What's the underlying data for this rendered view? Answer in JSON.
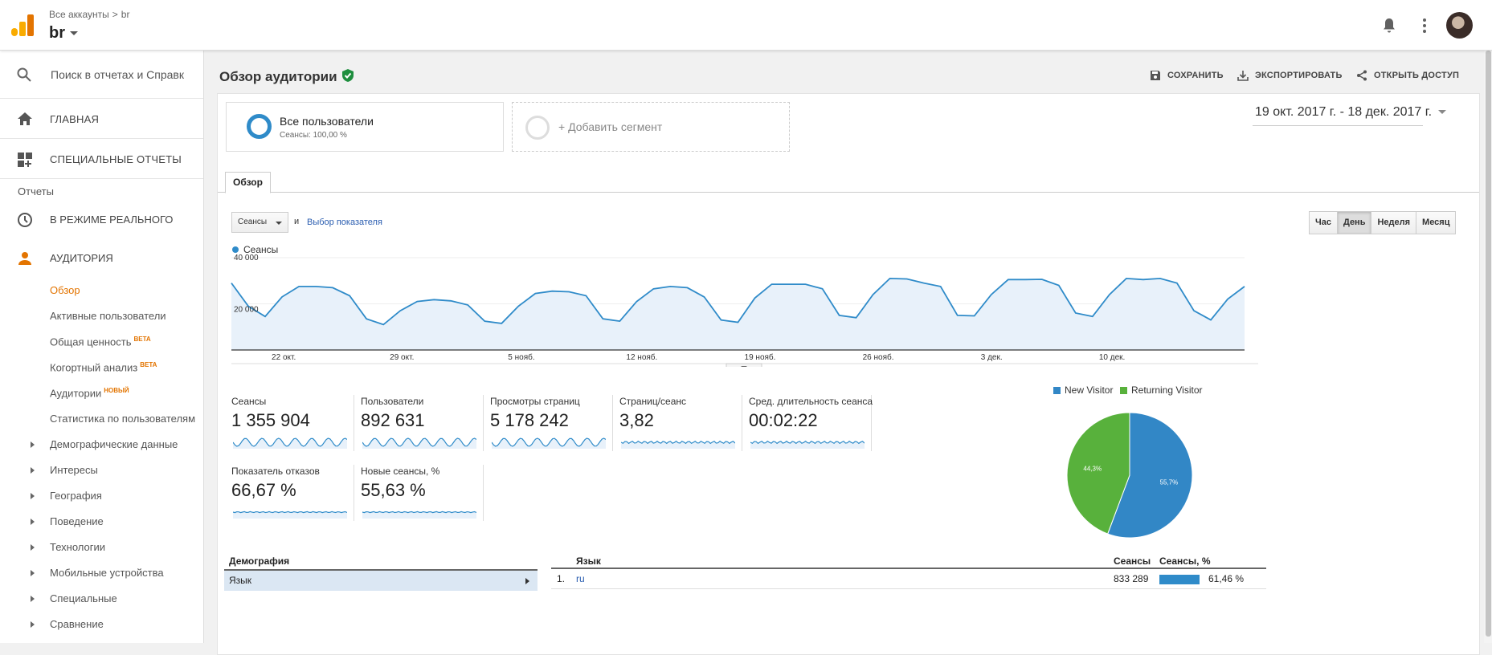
{
  "header": {
    "breadcrumb_root": "Все аккаунты",
    "breadcrumb_sep": ">",
    "breadcrumb_leaf": "br",
    "account_name": "br"
  },
  "sidebar": {
    "search_placeholder": "Поиск в отчетах и Справк",
    "home": "ГЛАВНАЯ",
    "custom_reports": "СПЕЦИАЛЬНЫЕ ОТЧЕТЫ",
    "reports_heading": "Отчеты",
    "realtime": "В РЕЖИМЕ РЕАЛЬНОГО",
    "audience": "АУДИТОРИЯ",
    "items": [
      {
        "label": "Обзор",
        "badge": ""
      },
      {
        "label": "Активные пользователи",
        "badge": ""
      },
      {
        "label": "Общая ценность",
        "badge": "BETA"
      },
      {
        "label": "Когортный анализ",
        "badge": "BETA"
      },
      {
        "label": "Аудитории",
        "badge": "НОВЫЙ"
      },
      {
        "label": "Статистика по пользователям",
        "badge": ""
      },
      {
        "label": "Демографические данные",
        "badge": ""
      },
      {
        "label": "Интересы",
        "badge": ""
      },
      {
        "label": "География",
        "badge": ""
      },
      {
        "label": "Поведение",
        "badge": ""
      },
      {
        "label": "Технологии",
        "badge": ""
      },
      {
        "label": "Мобильные устройства",
        "badge": ""
      },
      {
        "label": "Специальные",
        "badge": ""
      },
      {
        "label": "Сравнение",
        "badge": ""
      }
    ]
  },
  "page": {
    "title": "Обзор аудитории",
    "save": "СОХРАНИТЬ",
    "export": "ЭКСПОРТИРОВАТЬ",
    "share": "ОТКРЫТЬ ДОСТУП",
    "segment_name": "Все пользователи",
    "segment_sub": "Сеансы: 100,00 %",
    "add_segment": "+ Добавить сегмент",
    "date_range": "19 окт. 2017 г. - 18 дек. 2017 г.",
    "tab": "Обзор",
    "metric_select": "Сеансы",
    "and": "и",
    "pick_metric": "Выбор показателя",
    "granularity": [
      "Час",
      "День",
      "Неделя",
      "Месяц"
    ],
    "granularity_selected": "День",
    "series_label": "Сеансы"
  },
  "chart_data": {
    "type": "line",
    "series": [
      {
        "name": "Сеансы",
        "values": [
          29000,
          19000,
          14500,
          23000,
          27500,
          27500,
          27000,
          23500,
          13500,
          11000,
          17000,
          21000,
          21800,
          21300,
          19500,
          12500,
          11500,
          19000,
          24500,
          25500,
          25200,
          23500,
          13500,
          12500,
          21000,
          26500,
          27500,
          27000,
          23000,
          13000,
          12000,
          22500,
          28500,
          28500,
          28500,
          26500,
          15000,
          14000,
          24000,
          31000,
          30800,
          29000,
          27500,
          15000,
          14800,
          24000,
          30500,
          30500,
          30600,
          28000,
          16000,
          14500,
          24000,
          31000,
          30500,
          31000,
          29000,
          17000,
          13000,
          22000,
          27500
        ]
      }
    ],
    "x_tick_labels": [
      "22 окт.",
      "29 окт.",
      "5 нояб.",
      "12 нояб.",
      "19 нояб.",
      "26 нояб.",
      "3 дек.",
      "10 дек."
    ],
    "y_tick_labels": [
      "40 000",
      "20 000"
    ],
    "ylim": [
      0,
      40000
    ]
  },
  "metrics": [
    {
      "label": "Сеансы",
      "value": "1 355 904"
    },
    {
      "label": "Пользователи",
      "value": "892 631"
    },
    {
      "label": "Просмотры страниц",
      "value": "5 178 242"
    },
    {
      "label": "Страниц/сеанс",
      "value": "3,82"
    },
    {
      "label": "Сред. длительность сеанса",
      "value": "00:02:22"
    },
    {
      "label": "Показатель отказов",
      "value": "66,67 %"
    },
    {
      "label": "Новые сеансы, %",
      "value": "55,63 %"
    }
  ],
  "pie": {
    "legend": [
      {
        "name": "New Visitor",
        "color": "#3287c6"
      },
      {
        "name": "Returning Visitor",
        "color": "#58b13c"
      }
    ],
    "slices": [
      {
        "name": "New Visitor",
        "value": 55.7,
        "label": "55,7%"
      },
      {
        "name": "Returning Visitor",
        "value": 44.3,
        "label": "44,3%"
      }
    ]
  },
  "demography": {
    "heading": "Демография",
    "row": "Язык"
  },
  "language_table": {
    "col_lang": "Язык",
    "col_sessions": "Сеансы",
    "col_pct": "Сеансы, %",
    "rows": [
      {
        "rank": "1.",
        "lang": "ru",
        "sessions": "833 289",
        "pct": "61,46 %",
        "share": 0.6146
      }
    ]
  }
}
